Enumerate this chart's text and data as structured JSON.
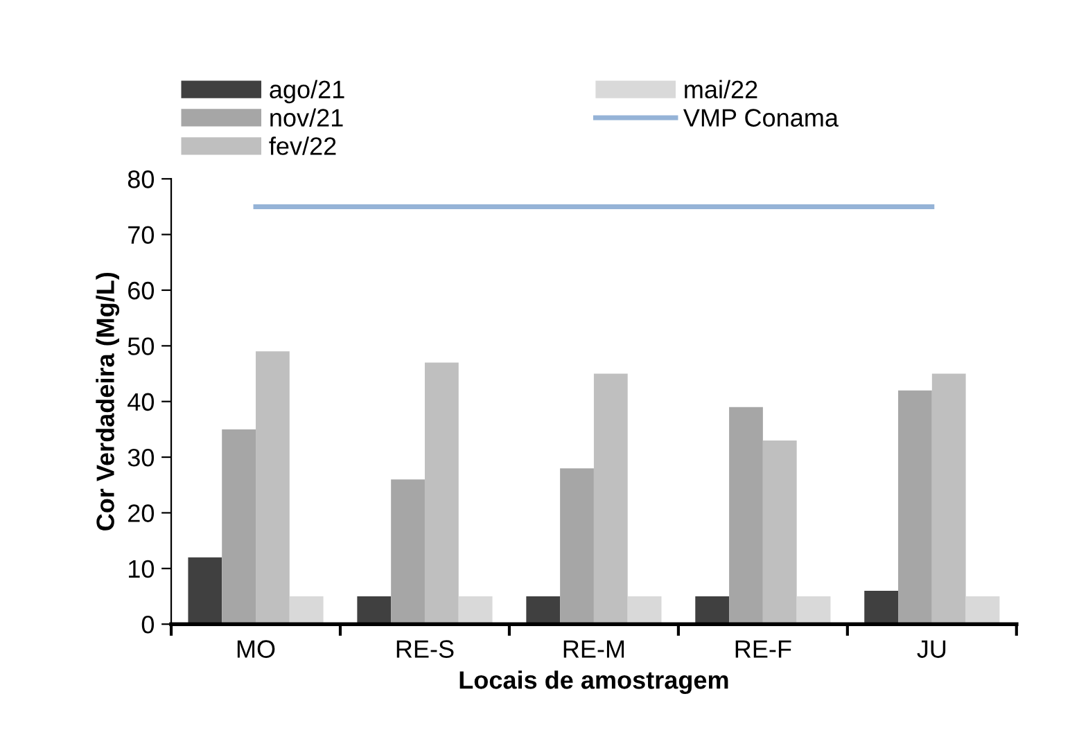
{
  "chart_data": {
    "type": "bar",
    "xlabel": "Locais de amostragem",
    "ylabel": "Cor Verdadeira (Mg/L)",
    "categories": [
      "MO",
      "RE-S",
      "RE-M",
      "RE-F",
      "JU"
    ],
    "series": [
      {
        "name": "ago/21",
        "color": "#404040",
        "values": [
          12,
          5,
          5,
          5,
          6
        ]
      },
      {
        "name": "nov/21",
        "color": "#a6a6a6",
        "values": [
          35,
          26,
          28,
          39,
          42
        ]
      },
      {
        "name": "fev/22",
        "color": "#bfbfbf",
        "values": [
          49,
          47,
          45,
          33,
          45
        ]
      },
      {
        "name": "mai/22",
        "color": "#d9d9d9",
        "values": [
          5,
          5,
          5,
          5,
          5
        ]
      },
      {
        "name": "VMP Conama",
        "type": "line",
        "color": "#95b3d7",
        "values": [
          75,
          75,
          75,
          75,
          75
        ]
      }
    ],
    "ylim": [
      0,
      80
    ],
    "yticks": [
      0,
      10,
      20,
      30,
      40,
      50,
      60,
      70,
      80
    ],
    "grid": false,
    "legend": "top",
    "marker": "none",
    "line_style": "solid"
  }
}
